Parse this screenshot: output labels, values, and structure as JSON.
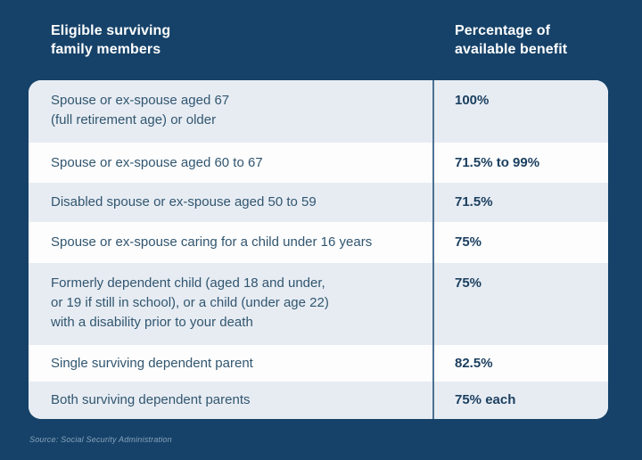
{
  "header": {
    "left_title": "Eligible surviving\nfamily members",
    "right_title": "Percentage of\navailable benefit"
  },
  "table": {
    "rows": [
      {
        "label": "Spouse or ex-spouse aged 67\n(full retirement age) or older",
        "value": "100%"
      },
      {
        "label": "Spouse or ex-spouse aged 60 to 67",
        "value": "71.5% to 99%"
      },
      {
        "label": "Disabled spouse or ex-spouse aged 50 to 59",
        "value": "71.5%"
      },
      {
        "label": "Spouse or ex-spouse caring for a child under 16 years",
        "value": "75%"
      },
      {
        "label": "Formerly dependent child (aged 18 and under,\nor 19 if still in school), or a child (under age 22)\nwith a disability prior to your death",
        "value": "75%"
      },
      {
        "label": "Single surviving dependent parent",
        "value": "82.5%"
      },
      {
        "label": "Both surviving dependent parents",
        "value": "75% each"
      }
    ]
  },
  "source": {
    "text": "Source: Social Security Administration"
  },
  "colors": {
    "navy": "#164269",
    "row-light": "#e7ecf3",
    "row-white": "#fdfdfe",
    "divider": "#4d7294",
    "label": "#31566f",
    "value": "#1b3f5f",
    "source": "#87a3ba",
    "header-text": "#ffffff"
  },
  "chart_data": {
    "type": "table",
    "title": "",
    "columns": [
      "Eligible surviving family members",
      "Percentage of available benefit"
    ],
    "rows": [
      [
        "Spouse or ex-spouse aged 67 (full retirement age) or older",
        "100%"
      ],
      [
        "Spouse or ex-spouse aged 60 to 67",
        "71.5% to 99%"
      ],
      [
        "Disabled spouse or ex-spouse aged 50 to 59",
        "71.5%"
      ],
      [
        "Spouse or ex-spouse caring for a child under 16 years",
        "75%"
      ],
      [
        "Formerly dependent child (aged 18 and under, or 19 if still in school), or a child (under age 22) with a disability prior to your death",
        "75%"
      ],
      [
        "Single surviving dependent parent",
        "82.5%"
      ],
      [
        "Both surviving dependent parents",
        "75% each"
      ]
    ],
    "source": "Source: Social Security Administration"
  }
}
